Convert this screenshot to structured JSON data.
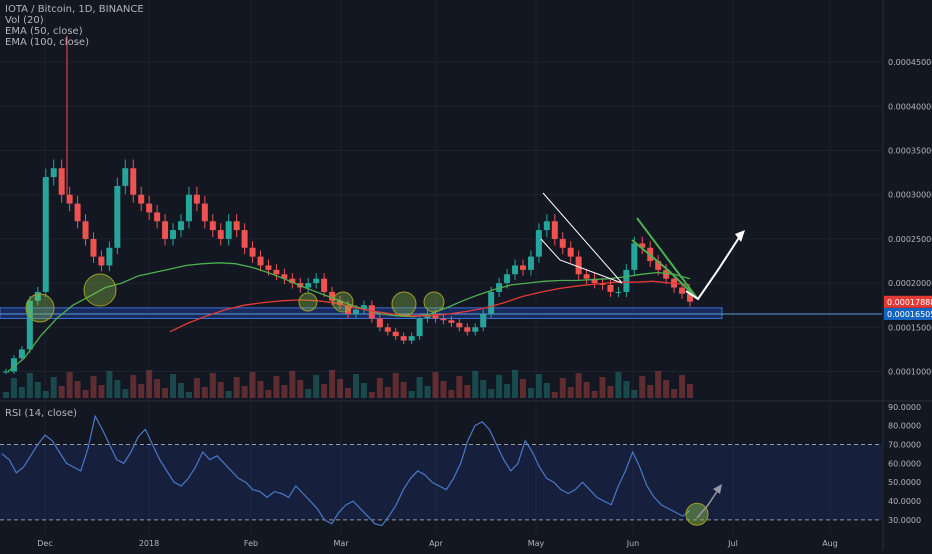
{
  "legend": {
    "symbol": "IOTA / Bitcoin, 1D, BINANCE",
    "vol": "Vol (20)",
    "ema50": "EMA (50, close)",
    "ema100": "EMA (100, close)",
    "rsi": "RSI (14, close)"
  },
  "colors": {
    "background": "#131722",
    "grid": "#1e222d",
    "up": "#26a69a",
    "down": "#ef5350",
    "ema50": "#4caf50",
    "ema100": "#e53935",
    "rsi": "#4a78c8",
    "support_zone": "#1e3a8a",
    "support_line": "#5b9bd5",
    "annotation_circle": "#9e9d24",
    "annotation_green": "#4caf50",
    "price_tag_red": "#e53935",
    "price_tag_blue": "#1565c0"
  },
  "chart_data": [
    {
      "type": "candlestick",
      "title": "IOTA / Bitcoin, 1D, BINANCE",
      "x_ticks": [
        "Dec",
        "2018",
        "Feb",
        "Mar",
        "Apr",
        "May",
        "Jun",
        "Jul",
        "Aug"
      ],
      "y_ticks": [
        "0.00045000",
        "0.00040000",
        "0.00035000",
        "0.00030000",
        "0.00025000",
        "0.00020000",
        "0.00015000",
        "0.00010000"
      ],
      "ylim": [
        7e-05,
        0.0005
      ],
      "last_price": "0.00017888",
      "line_price": "0.00016505",
      "support_zone": [
        0.00016,
        0.000172
      ],
      "price_series": [
        0.0001,
        0.000115,
        0.000125,
        0.00018,
        0.00019,
        0.00032,
        0.00033,
        0.0003,
        0.00029,
        0.00027,
        0.00025,
        0.00023,
        0.00022,
        0.00024,
        0.00031,
        0.00033,
        0.0003,
        0.00029,
        0.00028,
        0.00027,
        0.00025,
        0.00026,
        0.00027,
        0.0003,
        0.00029,
        0.00027,
        0.00026,
        0.00025,
        0.00027,
        0.00026,
        0.00024,
        0.00023,
        0.00022,
        0.000215,
        0.00021,
        0.000205,
        0.0002,
        0.000195,
        0.0002,
        0.000205,
        0.00019,
        0.00018,
        0.000175,
        0.000165,
        0.00017,
        0.000175,
        0.00016,
        0.00015,
        0.000145,
        0.00014,
        0.000135,
        0.00014,
        0.00016,
        0.000165,
        0.00016,
        0.000158,
        0.000155,
        0.00015,
        0.000145,
        0.00015,
        0.000165,
        0.00019,
        0.0002,
        0.00021,
        0.00022,
        0.000215,
        0.00023,
        0.00026,
        0.00027,
        0.00025,
        0.00024,
        0.00023,
        0.00021,
        0.000205,
        0.0002,
        0.000198,
        0.00019,
        0.00019,
        0.000215,
        0.000245,
        0.00024,
        0.000225,
        0.000215,
        0.000205,
        0.000195,
        0.000188,
        0.000179
      ],
      "ema50": [
        0.0001,
        0.000115,
        0.00014,
        0.00016,
        0.000175,
        0.000185,
        0.000195,
        0.0002,
        0.000208,
        0.000212,
        0.000216,
        0.00022,
        0.000222,
        0.000223,
        0.000222,
        0.000218,
        0.000212,
        0.000205,
        0.000197,
        0.00019,
        0.000183,
        0.000176,
        0.00017,
        0.000165,
        0.000163,
        0.000162,
        0.000165,
        0.000172,
        0.00018,
        0.000187,
        0.000193,
        0.000198,
        0.0002,
        0.000202,
        0.000203,
        0.000203,
        0.000204,
        0.000205,
        0.000207,
        0.00021,
        0.000212,
        0.00021,
        0.000205
      ],
      "ema100": [
        0.000145,
        0.000155,
        0.000163,
        0.00017,
        0.000175,
        0.000178,
        0.00018,
        0.000181,
        0.00018,
        0.000177,
        0.000172,
        0.000168,
        0.000165,
        0.000163,
        0.000163,
        0.000165,
        0.000168,
        0.000172,
        0.000178,
        0.000185,
        0.00019,
        0.000194,
        0.000197,
        0.000199,
        0.000201,
        0.000201,
        0.000202,
        0.0002,
        0.000198
      ]
    },
    {
      "type": "line",
      "title": "RSI (14, close)",
      "y_ticks": [
        "90.0000",
        "80.0000",
        "70.0000",
        "60.0000",
        "50.0000",
        "40.0000",
        "30.0000"
      ],
      "ylim": [
        22,
        92
      ],
      "overbought": 70,
      "oversold": 30,
      "rsi_series": [
        65,
        62,
        55,
        58,
        64,
        70,
        75,
        72,
        66,
        60,
        58,
        56,
        68,
        85,
        78,
        70,
        62,
        60,
        66,
        74,
        78,
        70,
        62,
        56,
        50,
        48,
        52,
        58,
        66,
        62,
        64,
        60,
        56,
        52,
        50,
        46,
        45,
        42,
        45,
        44,
        42,
        48,
        44,
        40,
        36,
        30,
        28,
        34,
        38,
        40,
        36,
        32,
        28,
        27,
        32,
        38,
        46,
        52,
        56,
        54,
        50,
        48,
        46,
        52,
        60,
        72,
        80,
        82,
        78,
        70,
        62,
        56,
        60,
        72,
        66,
        58,
        52,
        50,
        46,
        44,
        46,
        50,
        46,
        42,
        40,
        38,
        48,
        56,
        66,
        58,
        48,
        42,
        38,
        36,
        34,
        32,
        35
      ]
    }
  ]
}
